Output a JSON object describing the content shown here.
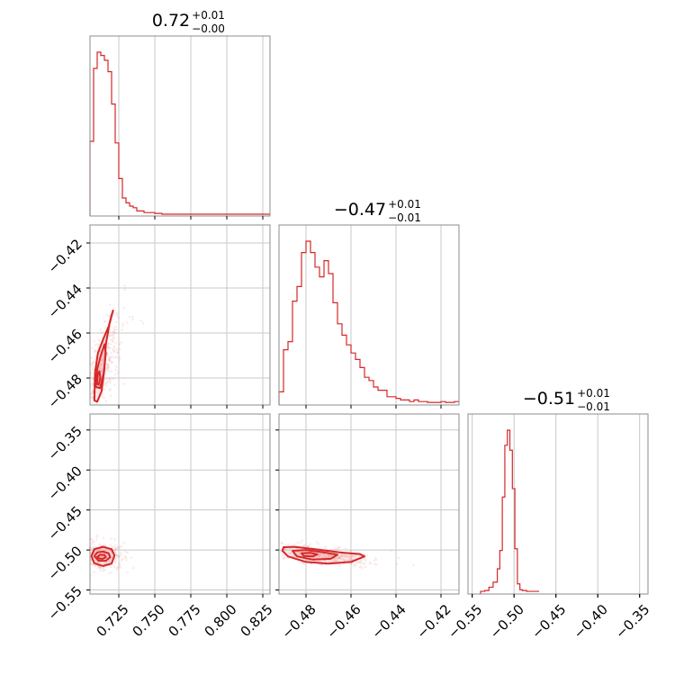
{
  "chart_data": {
    "type": "corner",
    "colors": {
      "line": "#d62728",
      "fill": "#f4a3a5",
      "points": "#e8888a",
      "frame": "#8c8c8c",
      "grid": "#c8c8c8"
    },
    "grid": true,
    "params": [
      {
        "id": "p0",
        "title": {
          "median": "0.72",
          "plus": "+0.01",
          "minus": "−0.00"
        },
        "range": [
          0.705,
          0.83
        ],
        "ticks": [
          0.725,
          0.75,
          0.775,
          0.8,
          0.825
        ],
        "tick_labels": [
          "0.725",
          "0.750",
          "0.775",
          "0.800",
          "0.825"
        ],
        "hist": {
          "edges": [
            0.705,
            0.7075,
            0.71,
            0.7125,
            0.715,
            0.7175,
            0.72,
            0.7225,
            0.725,
            0.7275,
            0.73,
            0.7325,
            0.735,
            0.7375,
            0.74,
            0.7425,
            0.745,
            0.7475,
            0.75,
            0.7525,
            0.755,
            0.83
          ],
          "values": [
            0.45,
            0.9,
            1.0,
            0.98,
            0.95,
            0.88,
            0.68,
            0.44,
            0.22,
            0.1,
            0.07,
            0.05,
            0.04,
            0.02,
            0.02,
            0.01,
            0.01,
            0.01,
            0.005,
            0.005,
            0.0
          ]
        }
      },
      {
        "id": "p1",
        "title": {
          "median": "−0.47",
          "plus": "+0.01",
          "minus": "−0.01"
        },
        "range": [
          -0.492,
          -0.412
        ],
        "ticks": [
          -0.48,
          -0.46,
          -0.44,
          -0.42
        ],
        "tick_labels": [
          "−0.48",
          "−0.46",
          "−0.44",
          "−0.42"
        ],
        "hist": {
          "edges": [
            -0.492,
            -0.49,
            -0.488,
            -0.486,
            -0.484,
            -0.482,
            -0.48,
            -0.478,
            -0.476,
            -0.474,
            -0.472,
            -0.47,
            -0.468,
            -0.466,
            -0.464,
            -0.462,
            -0.46,
            -0.458,
            -0.456,
            -0.454,
            -0.452,
            -0.45,
            -0.448,
            -0.446,
            -0.444,
            -0.442,
            -0.44,
            -0.438,
            -0.436,
            -0.434,
            -0.432,
            -0.43,
            -0.428,
            -0.426,
            -0.424,
            -0.422,
            -0.42,
            -0.418,
            -0.416,
            -0.414,
            -0.412
          ],
          "values": [
            0.07,
            0.33,
            0.38,
            0.63,
            0.72,
            0.93,
            1.0,
            0.93,
            0.84,
            0.78,
            0.88,
            0.8,
            0.62,
            0.49,
            0.42,
            0.36,
            0.31,
            0.27,
            0.22,
            0.16,
            0.14,
            0.1,
            0.08,
            0.08,
            0.04,
            0.04,
            0.03,
            0.02,
            0.02,
            0.01,
            0.02,
            0.01,
            0.01,
            0.005,
            0.005,
            0.005,
            0.01,
            0.005,
            0.005,
            0.01
          ]
        }
      },
      {
        "id": "p2",
        "title": {
          "median": "−0.51",
          "plus": "+0.01",
          "minus": "−0.01"
        },
        "range": [
          -0.555,
          -0.34
        ],
        "ticks": [
          -0.55,
          -0.5,
          -0.45,
          -0.4,
          -0.35
        ],
        "tick_labels": [
          "−0.55",
          "−0.50",
          "−0.45",
          "−0.40",
          "−0.35"
        ],
        "hist": {
          "edges": [
            -0.54,
            -0.535,
            -0.53,
            -0.525,
            -0.52,
            -0.517,
            -0.514,
            -0.511,
            -0.508,
            -0.505,
            -0.502,
            -0.499,
            -0.496,
            -0.493,
            -0.49,
            -0.485,
            -0.48,
            -0.47
          ],
          "values": [
            0.005,
            0.01,
            0.03,
            0.06,
            0.14,
            0.25,
            0.57,
            0.88,
            0.97,
            0.85,
            0.62,
            0.26,
            0.05,
            0.015,
            0.01,
            0.005,
            0.005
          ]
        }
      }
    ],
    "pairs": [
      {
        "id": "p1_vs_p0",
        "x": "p0",
        "y": "p1",
        "yrange": [
          -0.492,
          -0.412
        ],
        "yticks": [
          -0.48,
          -0.46,
          -0.44,
          -0.42
        ],
        "ytick_labels": [
          "−0.48",
          "−0.46",
          "−0.44",
          "−0.42"
        ],
        "scatter": {
          "cx": 0.714,
          "cy": -0.474,
          "sx": 0.0065,
          "sy": 0.0115,
          "rho": 0.7,
          "n": 360,
          "seed": 11
        },
        "contours": [
          {
            "level": "outer",
            "fill_opacity": 0.25,
            "points": [
              [
                0.708,
                -0.49
              ],
              [
                0.7085,
                -0.4775
              ],
              [
                0.7105,
                -0.469
              ],
              [
                0.714,
                -0.463
              ],
              [
                0.718,
                -0.457
              ],
              [
                0.72,
                -0.452
              ],
              [
                0.721,
                -0.45
              ],
              [
                0.7185,
                -0.456
              ],
              [
                0.716,
                -0.465
              ],
              [
                0.715,
                -0.476
              ],
              [
                0.713,
                -0.486
              ],
              [
                0.71,
                -0.4905
              ]
            ]
          },
          {
            "level": "middle",
            "fill_opacity": 0.45,
            "points": [
              [
                0.709,
                -0.484
              ],
              [
                0.71,
                -0.476
              ],
              [
                0.7125,
                -0.47
              ],
              [
                0.715,
                -0.465
              ],
              [
                0.716,
                -0.469
              ],
              [
                0.7145,
                -0.478
              ],
              [
                0.712,
                -0.4845
              ]
            ]
          },
          {
            "level": "inner",
            "fill_opacity": 0.65,
            "points": [
              [
                0.7098,
                -0.4825
              ],
              [
                0.7105,
                -0.478
              ],
              [
                0.7115,
                -0.477
              ],
              [
                0.7122,
                -0.48
              ],
              [
                0.711,
                -0.483
              ]
            ]
          }
        ]
      },
      {
        "id": "p2_vs_p0",
        "x": "p0",
        "y": "p2",
        "yrange": [
          -0.555,
          -0.33
        ],
        "yticks": [
          -0.55,
          -0.5,
          -0.45,
          -0.4,
          -0.35
        ],
        "ytick_labels": [
          "−0.55",
          "−0.50",
          "−0.45",
          "−0.40",
          "−0.35"
        ],
        "scatter": {
          "cx": 0.713,
          "cy": -0.508,
          "sx": 0.007,
          "sy": 0.0095,
          "rho": 0.0,
          "n": 300,
          "seed": 23
        },
        "contours": [
          {
            "level": "outer",
            "fill_opacity": 0.25,
            "points": [
              [
                0.706,
                -0.5075
              ],
              [
                0.708,
                -0.499
              ],
              [
                0.714,
                -0.496
              ],
              [
                0.72,
                -0.499
              ],
              [
                0.722,
                -0.507
              ],
              [
                0.72,
                -0.517
              ],
              [
                0.714,
                -0.52
              ],
              [
                0.708,
                -0.5165
              ]
            ]
          },
          {
            "level": "middle",
            "fill_opacity": 0.45,
            "points": [
              [
                0.708,
                -0.508
              ],
              [
                0.71,
                -0.503
              ],
              [
                0.714,
                -0.502
              ],
              [
                0.718,
                -0.504
              ],
              [
                0.719,
                -0.509
              ],
              [
                0.716,
                -0.5135
              ],
              [
                0.711,
                -0.5135
              ]
            ]
          },
          {
            "level": "inner",
            "fill_opacity": 0.65,
            "points": [
              [
                0.71,
                -0.5085
              ],
              [
                0.712,
                -0.506
              ],
              [
                0.715,
                -0.5062
              ],
              [
                0.716,
                -0.509
              ],
              [
                0.714,
                -0.511
              ],
              [
                0.7115,
                -0.5108
              ]
            ]
          }
        ]
      },
      {
        "id": "p2_vs_p1",
        "x": "p1",
        "y": "p2",
        "yrange": [
          -0.555,
          -0.33
        ],
        "yticks": [
          -0.55,
          -0.5,
          -0.45,
          -0.4,
          -0.35
        ],
        "ytick_labels": [],
        "scatter": {
          "cx": -0.472,
          "cy": -0.507,
          "sx": 0.011,
          "sy": 0.007,
          "rho": -0.6,
          "n": 380,
          "seed": 37
        },
        "contours": [
          {
            "level": "outer",
            "fill_opacity": 0.25,
            "points": [
              [
                -0.49,
                -0.4965
              ],
              [
                -0.485,
                -0.496
              ],
              [
                -0.476,
                -0.499
              ],
              [
                -0.465,
                -0.503
              ],
              [
                -0.456,
                -0.505
              ],
              [
                -0.454,
                -0.508
              ],
              [
                -0.46,
                -0.515
              ],
              [
                -0.47,
                -0.517
              ],
              [
                -0.48,
                -0.515
              ],
              [
                -0.488,
                -0.508
              ],
              [
                -0.4905,
                -0.501
              ]
            ]
          },
          {
            "level": "middle",
            "fill_opacity": 0.45,
            "points": [
              [
                -0.486,
                -0.501
              ],
              [
                -0.48,
                -0.5
              ],
              [
                -0.472,
                -0.503
              ],
              [
                -0.466,
                -0.506
              ],
              [
                -0.469,
                -0.511
              ],
              [
                -0.477,
                -0.512
              ],
              [
                -0.484,
                -0.508
              ]
            ]
          },
          {
            "level": "inner",
            "fill_opacity": 0.65,
            "points": [
              [
                -0.482,
                -0.504
              ],
              [
                -0.478,
                -0.5035
              ],
              [
                -0.475,
                -0.5055
              ],
              [
                -0.477,
                -0.508
              ],
              [
                -0.481,
                -0.5075
              ]
            ]
          }
        ]
      }
    ]
  }
}
